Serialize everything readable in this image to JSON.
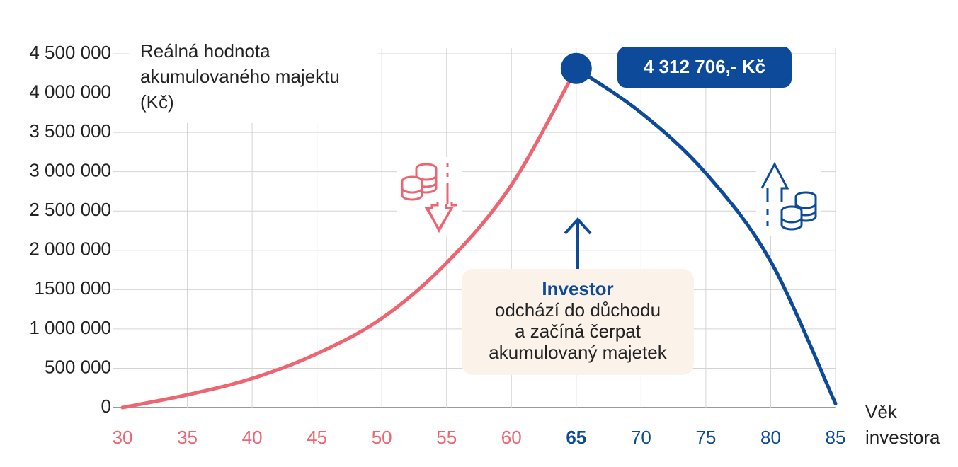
{
  "chart_data": {
    "type": "line",
    "y_label": [
      "Reálná hodnota",
      "akumulovaného majektu",
      "(Kč)"
    ],
    "x_label": [
      "Věk",
      "investora"
    ],
    "xlim": [
      30,
      85
    ],
    "xticks": [
      30,
      35,
      40,
      45,
      50,
      55,
      60,
      65,
      70,
      75,
      80,
      85
    ],
    "ylim": [
      0,
      4500000
    ],
    "yticks": [
      0,
      {
        "value": 500000,
        "label": "500 000"
      },
      {
        "value": 1000000,
        "label": "1 000 000"
      },
      {
        "value": 1500000,
        "label": "1500 000"
      },
      {
        "value": 2000000,
        "label": "2 000 000"
      },
      {
        "value": 2500000,
        "label": "2 500 000"
      },
      {
        "value": 3000000,
        "label": "3 000 000"
      },
      {
        "value": 3500000,
        "label": "3 500 000"
      },
      {
        "value": 4000000,
        "label": "4 000 000"
      },
      {
        "value": 4500000,
        "label": "4 500 000"
      }
    ],
    "grid": true,
    "series": [
      {
        "color": "#ee6470",
        "x": [
          30,
          35,
          40,
          45,
          50,
          55,
          60,
          65
        ],
        "values": [
          0,
          162000,
          370000,
          685000,
          1135000,
          1840000,
          2830000,
          4312706
        ]
      },
      {
        "color": "#0d4a9a",
        "x": [
          65,
          70,
          75,
          80,
          85
        ],
        "values": [
          4312706,
          3750000,
          2980000,
          1860000,
          50000
        ]
      }
    ],
    "peak": {
      "x": 65,
      "y": 4312706,
      "label": "4 312 706,- Kč",
      "color": "#0d4a9a"
    },
    "annotation": {
      "title": "Investor",
      "lines": [
        "odchází do důchodu",
        "a začíná čerpat",
        "akumulovaný majetek"
      ]
    }
  }
}
